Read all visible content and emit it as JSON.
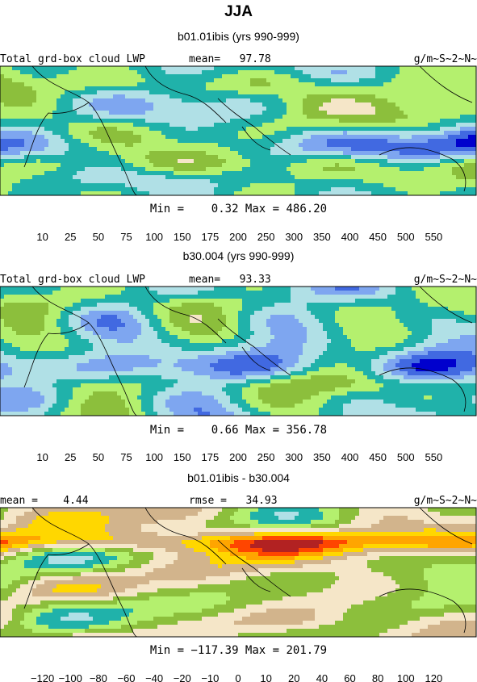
{
  "title": "JJA",
  "chart_data": [
    {
      "type": "heatmap",
      "subtitle": "b01.01ibis (yrs 990-999)",
      "left_label": "Total grd-box cloud LWP",
      "center_label": "mean=   97.78",
      "right_label": "g/m~S~2~N~",
      "minmax_label": "Min =    0.32 Max = 486.20",
      "stats": {
        "mean": 97.78,
        "min": 0.32,
        "max": 486.2
      },
      "units": "g/m~S~2~N~",
      "levels": [
        "10",
        "25",
        "50",
        "75",
        "100",
        "150",
        "175",
        "200",
        "250",
        "300",
        "350",
        "400",
        "450",
        "500",
        "550"
      ],
      "colors": [
        "#9370db",
        "#0000cd",
        "#4169e1",
        "#7ea6f0",
        "#b0e0e6",
        "#20b2aa",
        "#b4f06e",
        "#8cbf3c",
        "#f5e6c8",
        "#d2b48c",
        "#ffd700",
        "#ffa500",
        "#ff4500",
        "#b22222",
        "#ffb6c1",
        "#ff1493"
      ]
    },
    {
      "type": "heatmap",
      "subtitle": "b30.004 (yrs 990-999)",
      "left_label": "Total grd-box cloud LWP",
      "center_label": "mean=   93.33",
      "right_label": "g/m~S~2~N~",
      "minmax_label": "Min =    0.66 Max = 356.78",
      "stats": {
        "mean": 93.33,
        "min": 0.66,
        "max": 356.78
      },
      "units": "g/m~S~2~N~",
      "levels": [
        "10",
        "25",
        "50",
        "75",
        "100",
        "150",
        "175",
        "200",
        "250",
        "300",
        "350",
        "400",
        "450",
        "500",
        "550"
      ],
      "colors": [
        "#9370db",
        "#0000cd",
        "#4169e1",
        "#7ea6f0",
        "#b0e0e6",
        "#20b2aa",
        "#b4f06e",
        "#8cbf3c",
        "#f5e6c8",
        "#d2b48c",
        "#ffd700",
        "#ffa500",
        "#ff4500",
        "#b22222",
        "#ffb6c1",
        "#ff1493"
      ]
    },
    {
      "type": "heatmap",
      "subtitle": "b01.01ibis - b30.004",
      "left_label": "mean =    4.44",
      "center_label": "rmse =   34.93",
      "right_label": "g/m~S~2~N~",
      "minmax_label": "Min = −117.39 Max = 201.79",
      "stats": {
        "mean": 4.44,
        "rmse": 34.93,
        "min": -117.39,
        "max": 201.79
      },
      "units": "g/m~S~2~N~",
      "levels": [
        "−120",
        "−100",
        "−80",
        "−60",
        "−40",
        "−20",
        "−10",
        "0",
        "10",
        "20",
        "40",
        "60",
        "80",
        "100",
        "120"
      ],
      "colors": [
        "#9370db",
        "#0000cd",
        "#4169e1",
        "#7ea6f0",
        "#b0e0e6",
        "#20b2aa",
        "#b4f06e",
        "#8cbf3c",
        "#f5e6c8",
        "#d2b48c",
        "#ffd700",
        "#ffa500",
        "#ff4500",
        "#b22222",
        "#ffb6c1",
        "#ff1493"
      ]
    }
  ]
}
